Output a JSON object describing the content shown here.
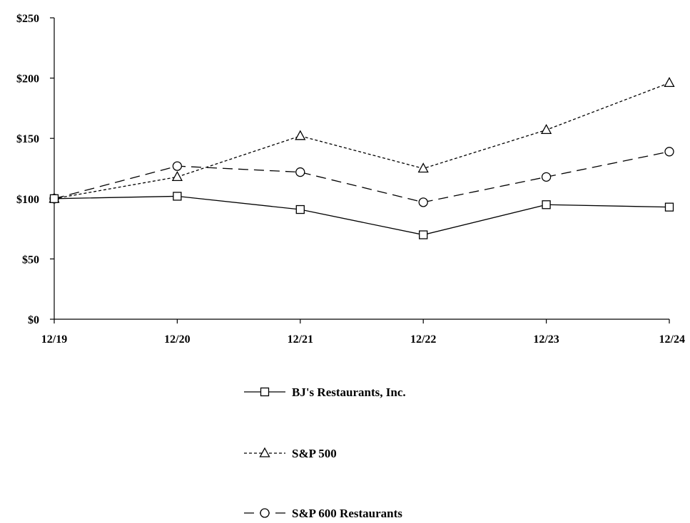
{
  "chart_data": {
    "type": "line",
    "title": "",
    "xlabel": "",
    "ylabel": "",
    "categories": [
      "12/19",
      "12/20",
      "12/21",
      "12/22",
      "12/23",
      "12/24"
    ],
    "ylim": [
      0,
      250
    ],
    "yticks": [
      "$0",
      "$50",
      "$100",
      "$150",
      "$200",
      "$250"
    ],
    "ytick_values": [
      0,
      50,
      100,
      150,
      200,
      250
    ],
    "grid": false,
    "legend_position": "bottom-center",
    "series": [
      {
        "name": "BJ's Restaurants, Inc.",
        "values": [
          100,
          102,
          91,
          70,
          95,
          93
        ],
        "marker": "square",
        "line_style": "solid",
        "color": "#000000"
      },
      {
        "name": "S&P 500",
        "values": [
          100,
          118,
          152,
          125,
          157,
          196
        ],
        "marker": "triangle",
        "line_style": "dotted",
        "color": "#000000"
      },
      {
        "name": "S&P 600 Restaurants",
        "values": [
          100,
          127,
          122,
          97,
          118,
          139
        ],
        "marker": "circle",
        "line_style": "dashed",
        "color": "#000000"
      }
    ]
  }
}
